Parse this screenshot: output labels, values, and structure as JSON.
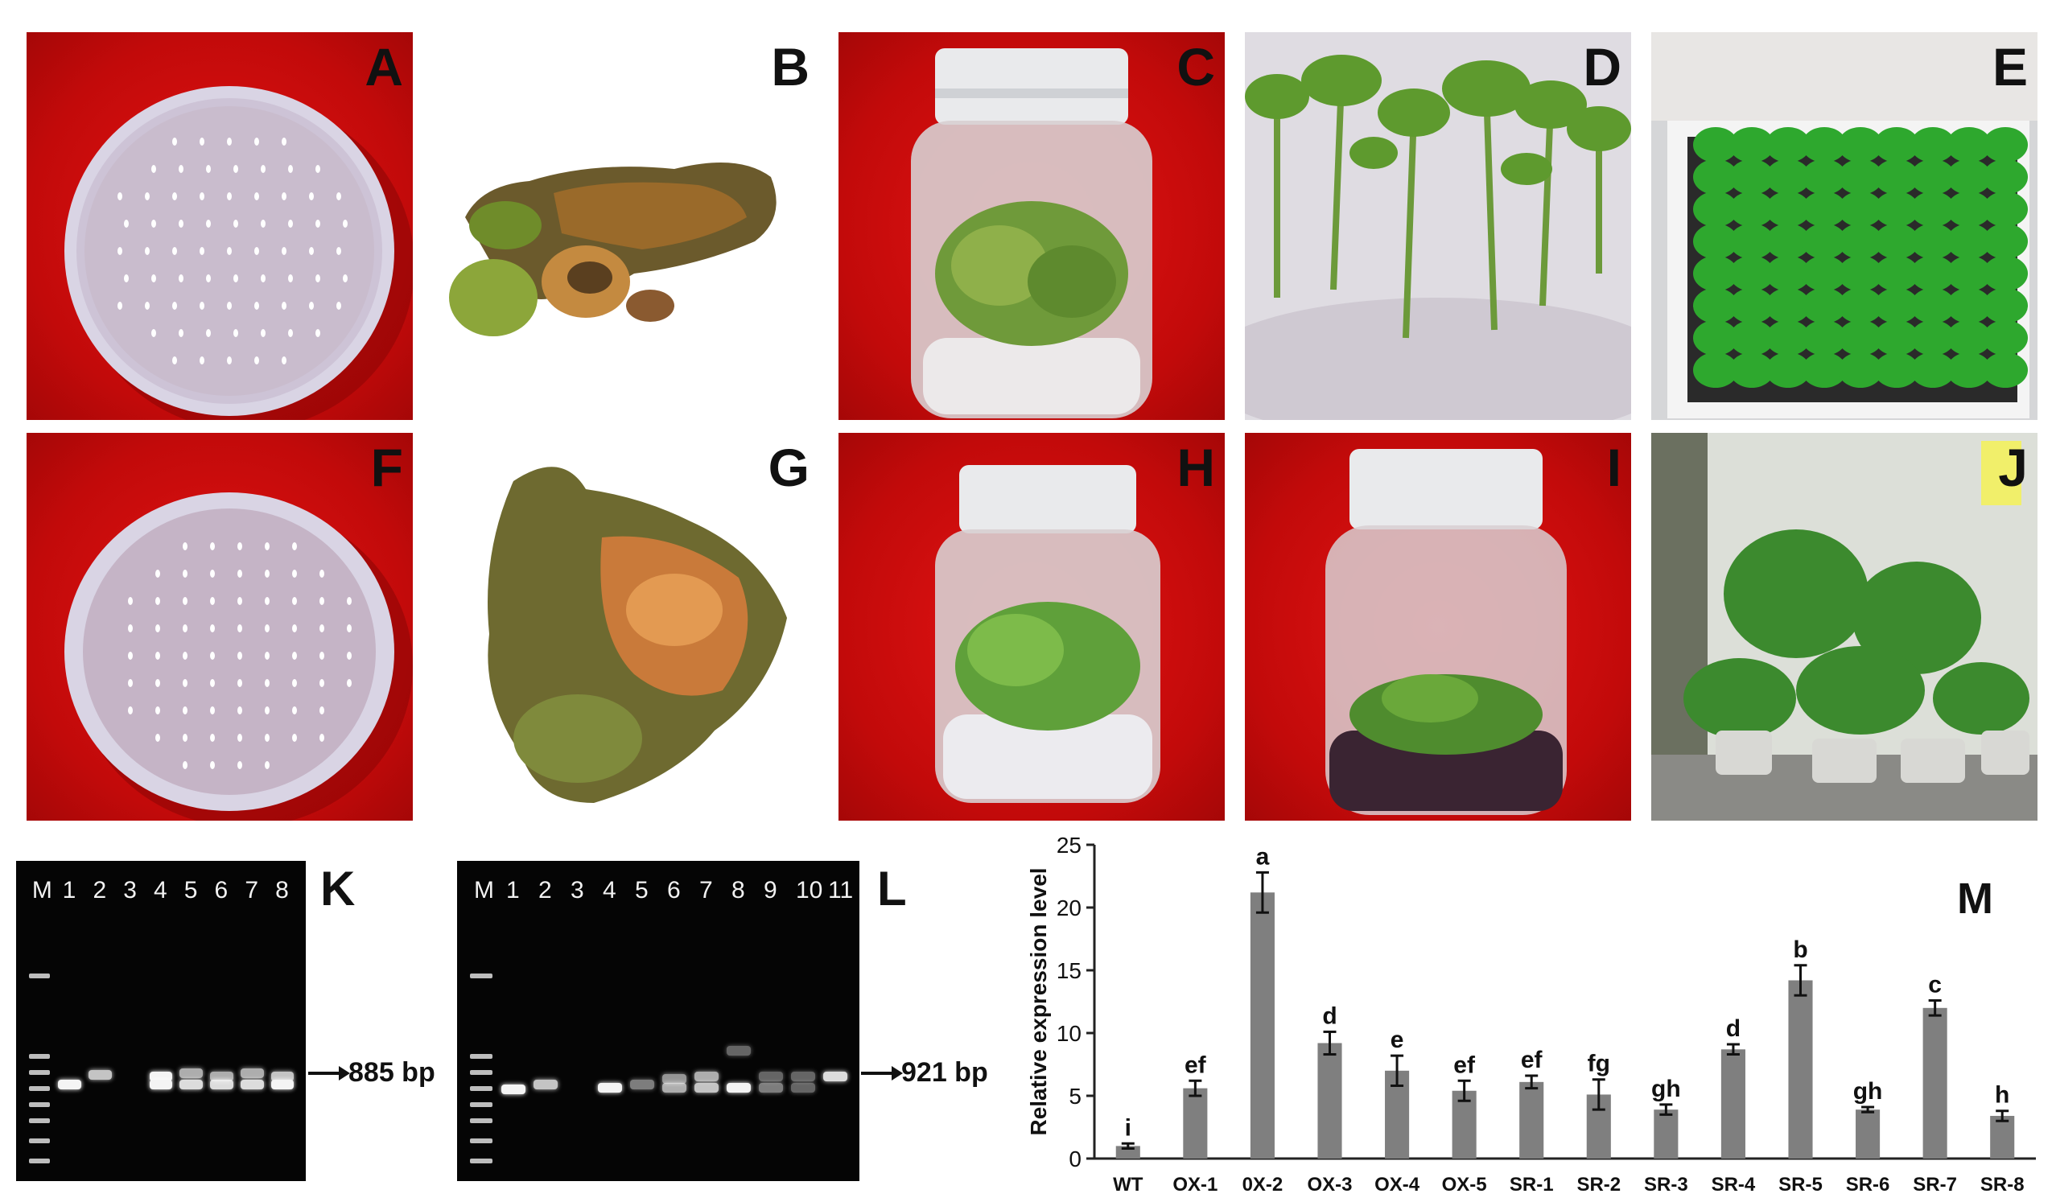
{
  "panels": {
    "A": "A",
    "B": "B",
    "C": "C",
    "D": "D",
    "E": "E",
    "F": "F",
    "G": "G",
    "H": "H",
    "I": "I",
    "J": "J",
    "K": "K",
    "L": "L",
    "M": "M"
  },
  "gel_k": {
    "lanes": [
      "M",
      "1",
      "2",
      "3",
      "4",
      "5",
      "6",
      "7",
      "8"
    ],
    "band_label": "885 bp"
  },
  "gel_l": {
    "lanes": [
      "M",
      "1",
      "2",
      "3",
      "4",
      "5",
      "6",
      "7",
      "8",
      "9",
      "10",
      "11"
    ],
    "band_label": "921 bp"
  },
  "chart_data": {
    "type": "bar",
    "ylabel": "Relative expression level",
    "ylim": [
      0,
      25
    ],
    "yticks": [
      0,
      5,
      10,
      15,
      20,
      25
    ],
    "categories": [
      "WT",
      "OX-1",
      "0X-2",
      "OX-3",
      "OX-4",
      "OX-5",
      "SR-1",
      "SR-2",
      "SR-3",
      "SR-4",
      "SR-5",
      "SR-6",
      "SR-7",
      "SR-8"
    ],
    "values": [
      1.0,
      5.6,
      21.2,
      9.2,
      7.0,
      5.4,
      6.1,
      5.1,
      3.9,
      8.7,
      14.2,
      3.9,
      12.0,
      3.4
    ],
    "errors": [
      0.2,
      0.6,
      1.6,
      0.9,
      1.2,
      0.8,
      0.5,
      1.2,
      0.4,
      0.4,
      1.2,
      0.2,
      0.6,
      0.4
    ],
    "significance": [
      "i",
      "ef",
      "a",
      "d",
      "e",
      "ef",
      "ef",
      "fg",
      "gh",
      "d",
      "b",
      "gh",
      "c",
      "h"
    ],
    "bar_color": "#7f7f7f",
    "grid": false
  }
}
